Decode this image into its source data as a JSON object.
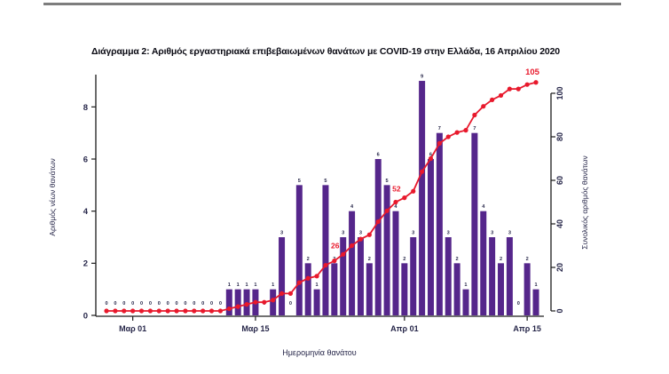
{
  "colors": {
    "bar": "#55268b",
    "line": "#e8192c",
    "annotation": "#e8192c",
    "text": "#262649",
    "axis": "#1c1c1c",
    "title": "#0b0b14",
    "top_rule": "#7d7d7d"
  },
  "chart_data": {
    "type": "bar+line",
    "title": "Διάγραμμα 2: Αριθμός εργαστηριακά επιβεβαιωμένων θανάτων με COVID-19 στην Ελλάδα, 16 Απριλίου 2020",
    "xlabel": "Ημερομηνία θανάτου",
    "ylabel_left": "Αριθμός νέων θανάτων",
    "ylabel_right": "Συνολικός αριθμός θανάτων",
    "left_axis": {
      "ticks": [
        0,
        2,
        4,
        6,
        8
      ],
      "max": 9
    },
    "right_axis": {
      "ticks": [
        0,
        20,
        40,
        60,
        80,
        100
      ],
      "max": 105
    },
    "x_ticks": [
      {
        "label": "Μαρ 01",
        "index": 3
      },
      {
        "label": "Μαρ 15",
        "index": 17
      },
      {
        "label": "Απρ 01",
        "index": 34
      },
      {
        "label": "Απρ 15",
        "index": 48
      }
    ],
    "dates": [
      "Φεβ 27",
      "Φεβ 28",
      "Φεβ 29",
      "Μαρ 01",
      "Μαρ 02",
      "Μαρ 03",
      "Μαρ 04",
      "Μαρ 05",
      "Μαρ 06",
      "Μαρ 07",
      "Μαρ 08",
      "Μαρ 09",
      "Μαρ 10",
      "Μαρ 11",
      "Μαρ 12",
      "Μαρ 13",
      "Μαρ 14",
      "Μαρ 15",
      "Μαρ 16",
      "Μαρ 17",
      "Μαρ 18",
      "Μαρ 19",
      "Μαρ 20",
      "Μαρ 21",
      "Μαρ 22",
      "Μαρ 23",
      "Μαρ 24",
      "Μαρ 25",
      "Μαρ 26",
      "Μαρ 27",
      "Μαρ 28",
      "Μαρ 29",
      "Μαρ 30",
      "Μαρ 31",
      "Απρ 01",
      "Απρ 02",
      "Απρ 03",
      "Απρ 04",
      "Απρ 05",
      "Απρ 06",
      "Απρ 07",
      "Απρ 08",
      "Απρ 09",
      "Απρ 10",
      "Απρ 11",
      "Απρ 12",
      "Απρ 13",
      "Απρ 14",
      "Απρ 15",
      "Απρ 16"
    ],
    "series": [
      {
        "name": "daily_deaths",
        "values": [
          0,
          0,
          0,
          0,
          0,
          0,
          0,
          0,
          0,
          0,
          0,
          0,
          0,
          0,
          1,
          1,
          1,
          1,
          0,
          1,
          3,
          0,
          5,
          2,
          1,
          5,
          2,
          3,
          4,
          3,
          2,
          6,
          5,
          4,
          2,
          3,
          9,
          6,
          7,
          3,
          2,
          1,
          7,
          4,
          3,
          2,
          3,
          0,
          2,
          1
        ]
      },
      {
        "name": "cumulative_deaths",
        "values": [
          0,
          0,
          0,
          0,
          0,
          0,
          0,
          0,
          0,
          0,
          0,
          0,
          0,
          0,
          1,
          2,
          3,
          4,
          4,
          5,
          8,
          8,
          13,
          15,
          16,
          21,
          23,
          26,
          30,
          33,
          35,
          41,
          46,
          50,
          52,
          55,
          64,
          70,
          77,
          80,
          82,
          83,
          90,
          94,
          97,
          99,
          102,
          102,
          104,
          105
        ]
      }
    ],
    "annotations": [
      {
        "text": "26",
        "index": 27
      },
      {
        "text": "52",
        "index": 34
      },
      {
        "text": "105",
        "index": 49
      }
    ]
  }
}
